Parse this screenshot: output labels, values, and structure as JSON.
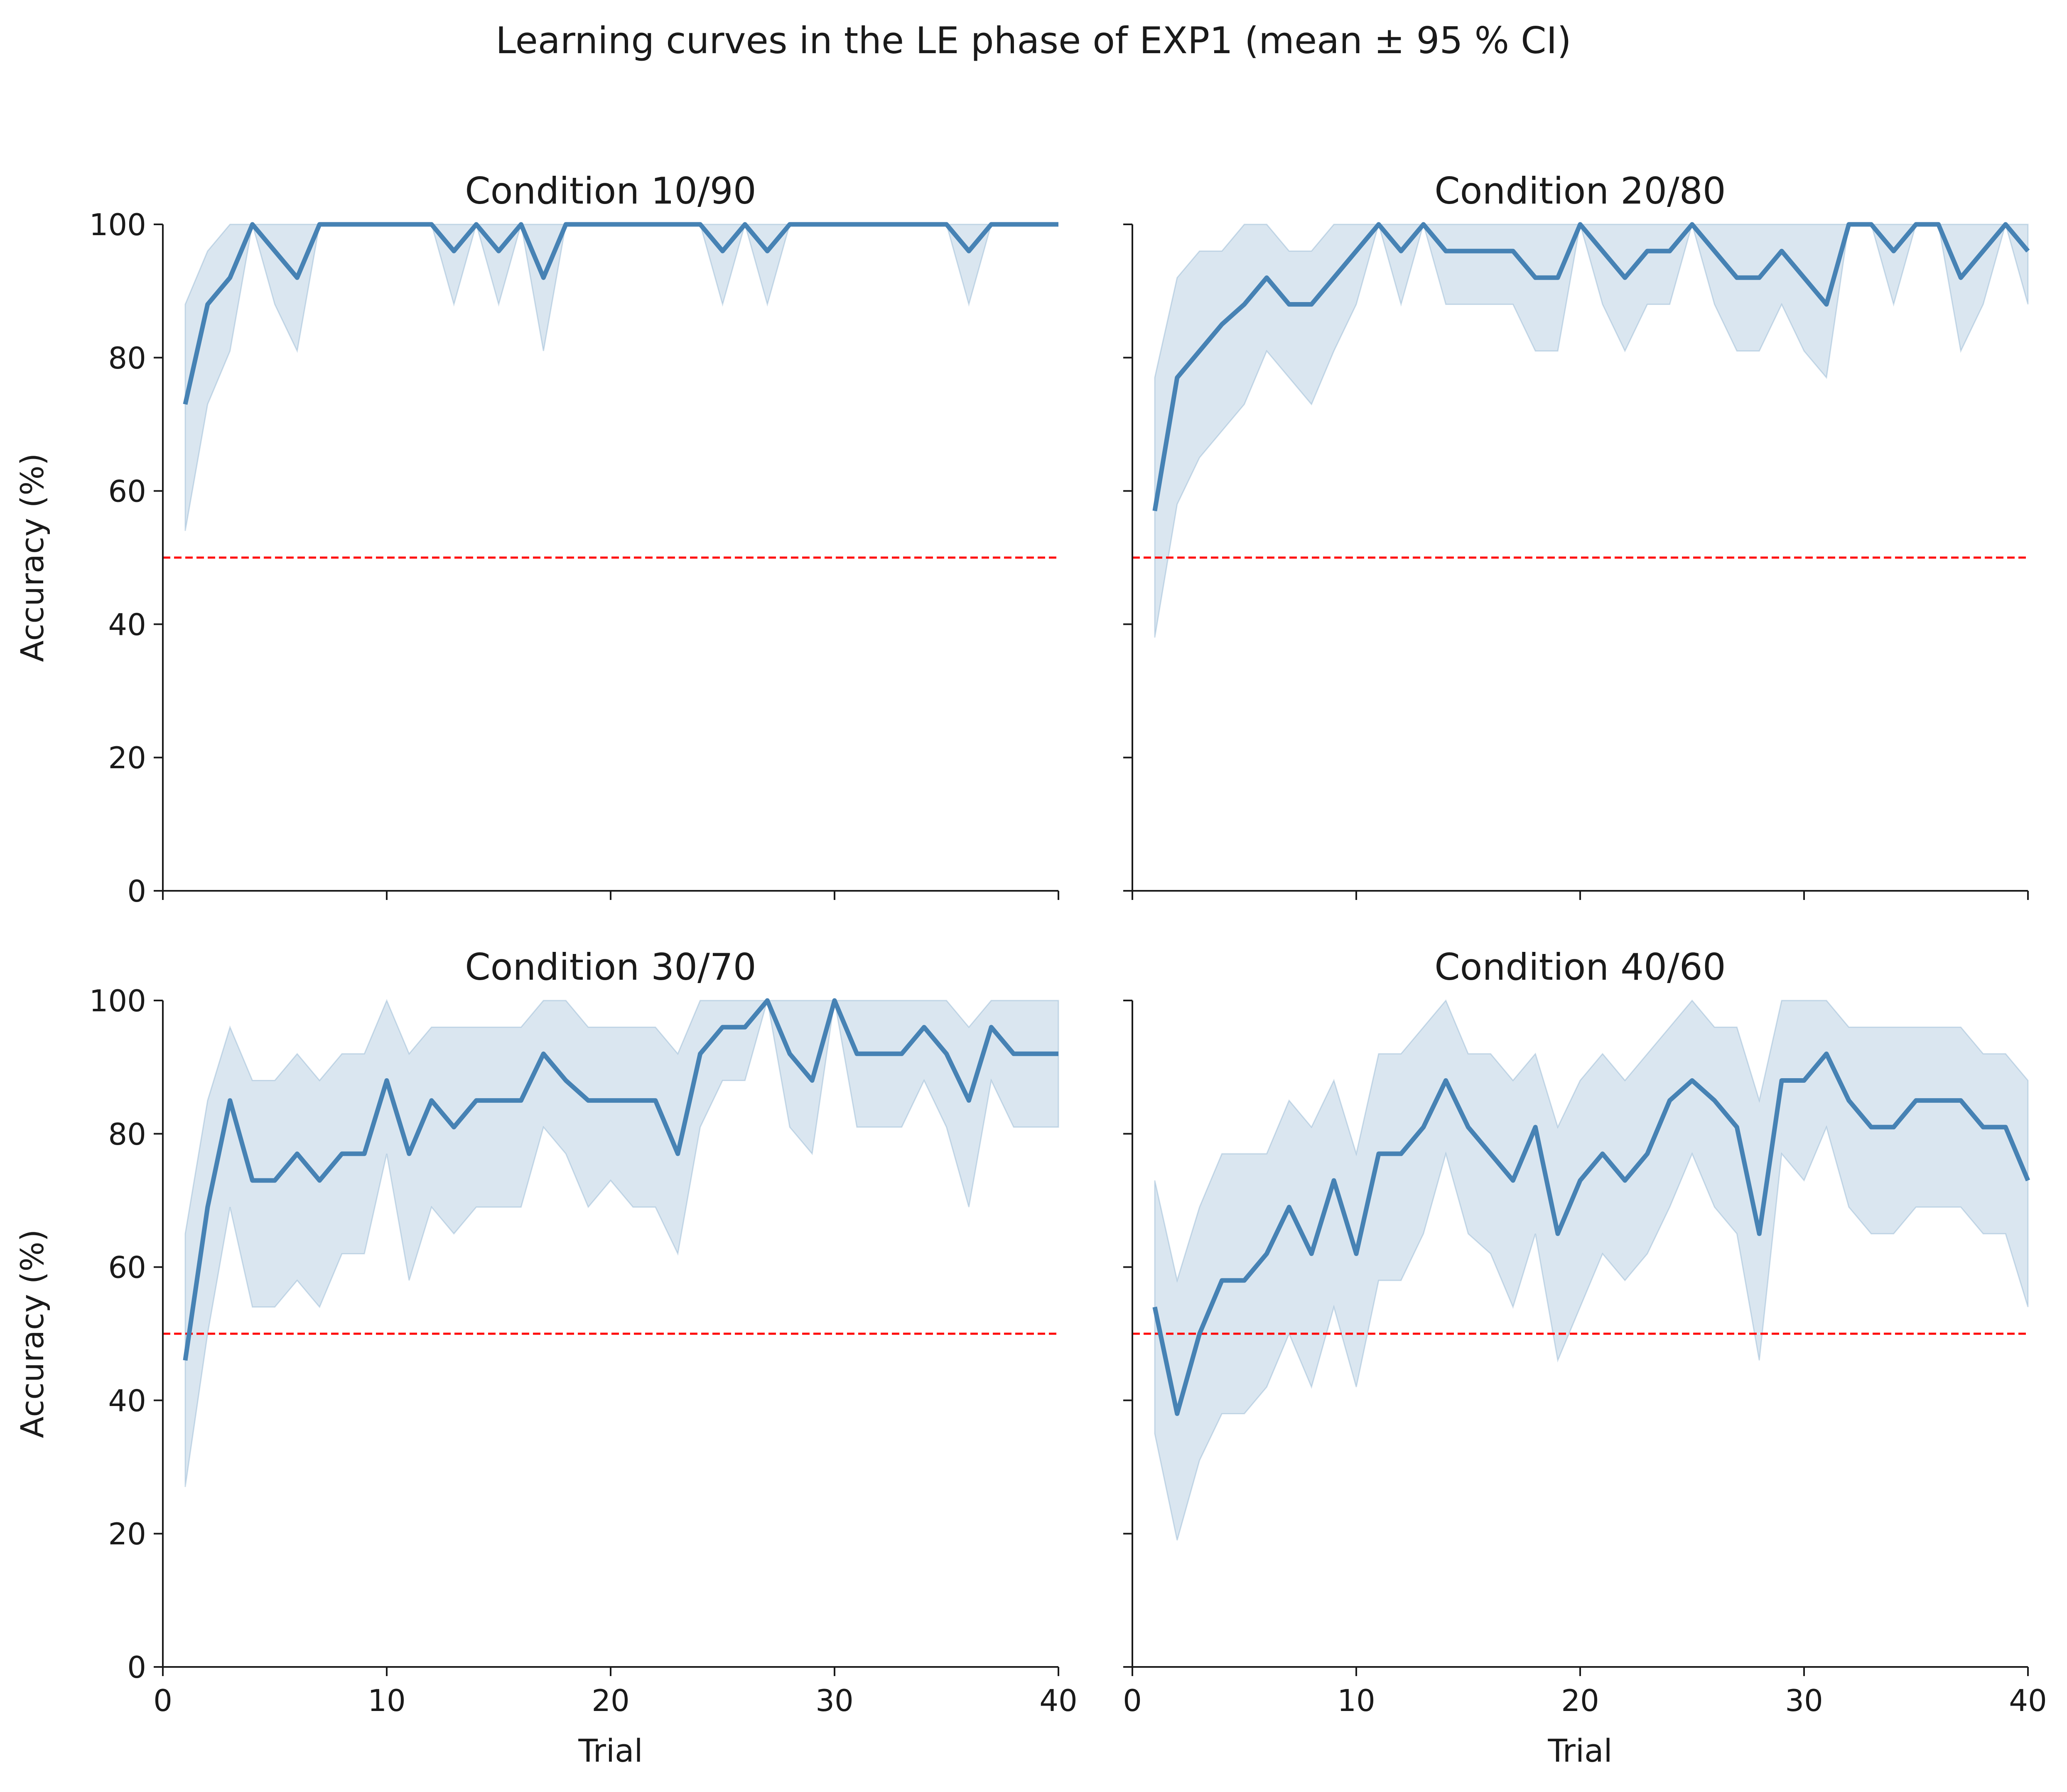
{
  "figure": {
    "title": "Learning curves in the LE phase of EXP1 (mean ± 95 % CI)",
    "colors": {
      "line": "#4682b4",
      "band": "#4682b4",
      "chance": "#ff0000",
      "axis": "#1a1a1a"
    }
  },
  "chart_data": [
    {
      "type": "line",
      "title": "Condition 10/90",
      "xlabel": "",
      "ylabel": "Accuracy (%)",
      "xlim": [
        0,
        40
      ],
      "ylim": [
        0,
        100
      ],
      "xticks": [
        "0",
        "10",
        "20",
        "30",
        "40"
      ],
      "yticks": [
        "0",
        "20",
        "40",
        "60",
        "80",
        "100"
      ],
      "show_x_ticklabels": false,
      "show_y_ticklabels": true,
      "chance_level": 50,
      "x": [
        1,
        2,
        3,
        4,
        5,
        6,
        7,
        8,
        9,
        10,
        11,
        12,
        13,
        14,
        15,
        16,
        17,
        18,
        19,
        20,
        21,
        22,
        23,
        24,
        25,
        26,
        27,
        28,
        29,
        30,
        31,
        32,
        33,
        34,
        35,
        36,
        37,
        38,
        39,
        40
      ],
      "mean": [
        73,
        88,
        92,
        100,
        96,
        92,
        100,
        100,
        100,
        100,
        100,
        100,
        96,
        100,
        96,
        100,
        92,
        100,
        100,
        100,
        100,
        100,
        100,
        100,
        96,
        100,
        96,
        100,
        100,
        100,
        100,
        100,
        100,
        100,
        100,
        96,
        100,
        100,
        100,
        100
      ],
      "lower": [
        54,
        73,
        81,
        100,
        88,
        81,
        100,
        100,
        100,
        100,
        100,
        100,
        88,
        100,
        88,
        100,
        81,
        100,
        100,
        100,
        100,
        100,
        100,
        100,
        88,
        100,
        88,
        100,
        100,
        100,
        100,
        100,
        100,
        100,
        100,
        88,
        100,
        100,
        100,
        100
      ],
      "upper": [
        88,
        96,
        100,
        100,
        100,
        100,
        100,
        100,
        100,
        100,
        100,
        100,
        100,
        100,
        100,
        100,
        100,
        100,
        100,
        100,
        100,
        100,
        100,
        100,
        100,
        100,
        100,
        100,
        100,
        100,
        100,
        100,
        100,
        100,
        100,
        100,
        100,
        100,
        100,
        100
      ]
    },
    {
      "type": "line",
      "title": "Condition 20/80",
      "xlabel": "",
      "ylabel": "",
      "xlim": [
        0,
        40
      ],
      "ylim": [
        0,
        100
      ],
      "xticks": [
        "0",
        "10",
        "20",
        "30",
        "40"
      ],
      "yticks": [
        "0",
        "20",
        "40",
        "60",
        "80",
        "100"
      ],
      "show_x_ticklabels": false,
      "show_y_ticklabels": false,
      "chance_level": 50,
      "x": [
        1,
        2,
        3,
        4,
        5,
        6,
        7,
        8,
        9,
        10,
        11,
        12,
        13,
        14,
        15,
        16,
        17,
        18,
        19,
        20,
        21,
        22,
        23,
        24,
        25,
        26,
        27,
        28,
        29,
        30,
        31,
        32,
        33,
        34,
        35,
        36,
        37,
        38,
        39,
        40
      ],
      "mean": [
        57,
        77,
        81,
        85,
        88,
        92,
        88,
        88,
        92,
        96,
        100,
        96,
        100,
        96,
        96,
        96,
        96,
        92,
        92,
        100,
        96,
        92,
        96,
        96,
        100,
        96,
        92,
        92,
        96,
        92,
        88,
        100,
        100,
        96,
        100,
        100,
        92,
        96,
        100,
        96
      ],
      "lower": [
        38,
        58,
        65,
        69,
        73,
        81,
        77,
        73,
        81,
        88,
        100,
        88,
        100,
        88,
        88,
        88,
        88,
        81,
        81,
        100,
        88,
        81,
        88,
        88,
        100,
        88,
        81,
        81,
        88,
        81,
        77,
        100,
        100,
        88,
        100,
        100,
        81,
        88,
        100,
        88
      ],
      "upper": [
        77,
        92,
        96,
        96,
        100,
        100,
        96,
        96,
        100,
        100,
        100,
        100,
        100,
        100,
        100,
        100,
        100,
        100,
        100,
        100,
        100,
        100,
        100,
        100,
        100,
        100,
        100,
        100,
        100,
        100,
        100,
        100,
        100,
        100,
        100,
        100,
        100,
        100,
        100,
        100
      ]
    },
    {
      "type": "line",
      "title": "Condition 30/70",
      "xlabel": "Trial",
      "ylabel": "Accuracy (%)",
      "xlim": [
        0,
        40
      ],
      "ylim": [
        0,
        100
      ],
      "xticks": [
        "0",
        "10",
        "20",
        "30",
        "40"
      ],
      "yticks": [
        "0",
        "20",
        "40",
        "60",
        "80",
        "100"
      ],
      "show_x_ticklabels": true,
      "show_y_ticklabels": true,
      "chance_level": 50,
      "x": [
        1,
        2,
        3,
        4,
        5,
        6,
        7,
        8,
        9,
        10,
        11,
        12,
        13,
        14,
        15,
        16,
        17,
        18,
        19,
        20,
        21,
        22,
        23,
        24,
        25,
        26,
        27,
        28,
        29,
        30,
        31,
        32,
        33,
        34,
        35,
        36,
        37,
        38,
        39,
        40
      ],
      "mean": [
        46,
        69,
        85,
        73,
        73,
        77,
        73,
        77,
        77,
        88,
        77,
        85,
        81,
        85,
        85,
        85,
        92,
        88,
        85,
        85,
        85,
        85,
        77,
        92,
        96,
        96,
        100,
        92,
        88,
        100,
        92,
        92,
        92,
        96,
        92,
        85,
        96,
        92,
        92,
        92
      ],
      "lower": [
        27,
        50,
        69,
        54,
        54,
        58,
        54,
        62,
        62,
        77,
        58,
        69,
        65,
        69,
        69,
        69,
        81,
        77,
        69,
        73,
        69,
        69,
        62,
        81,
        88,
        88,
        100,
        81,
        77,
        100,
        81,
        81,
        81,
        88,
        81,
        69,
        88,
        81,
        81,
        81
      ],
      "upper": [
        65,
        85,
        96,
        88,
        88,
        92,
        88,
        92,
        92,
        100,
        92,
        96,
        96,
        96,
        96,
        96,
        100,
        100,
        96,
        96,
        96,
        96,
        92,
        100,
        100,
        100,
        100,
        100,
        100,
        100,
        100,
        100,
        100,
        100,
        100,
        96,
        100,
        100,
        100,
        100
      ]
    },
    {
      "type": "line",
      "title": "Condition 40/60",
      "xlabel": "Trial",
      "ylabel": "",
      "xlim": [
        0,
        40
      ],
      "ylim": [
        0,
        100
      ],
      "xticks": [
        "0",
        "10",
        "20",
        "30",
        "40"
      ],
      "yticks": [
        "0",
        "20",
        "40",
        "60",
        "80",
        "100"
      ],
      "show_x_ticklabels": true,
      "show_y_ticklabels": false,
      "chance_level": 50,
      "x": [
        1,
        2,
        3,
        4,
        5,
        6,
        7,
        8,
        9,
        10,
        11,
        12,
        13,
        14,
        15,
        16,
        17,
        18,
        19,
        20,
        21,
        22,
        23,
        24,
        25,
        26,
        27,
        28,
        29,
        30,
        31,
        32,
        33,
        34,
        35,
        36,
        37,
        38,
        39,
        40
      ],
      "mean": [
        54,
        38,
        50,
        58,
        58,
        62,
        69,
        62,
        73,
        62,
        77,
        77,
        81,
        88,
        81,
        77,
        73,
        81,
        65,
        73,
        77,
        73,
        77,
        85,
        88,
        85,
        81,
        65,
        88,
        88,
        92,
        85,
        81,
        81,
        85,
        85,
        85,
        81,
        81,
        73
      ],
      "lower": [
        35,
        19,
        31,
        38,
        38,
        42,
        50,
        42,
        54,
        42,
        58,
        58,
        65,
        77,
        65,
        62,
        54,
        65,
        46,
        54,
        62,
        58,
        62,
        69,
        77,
        69,
        65,
        46,
        77,
        73,
        81,
        69,
        65,
        65,
        69,
        69,
        69,
        65,
        65,
        54
      ],
      "upper": [
        73,
        58,
        69,
        77,
        77,
        77,
        85,
        81,
        88,
        77,
        92,
        92,
        96,
        100,
        92,
        92,
        88,
        92,
        81,
        88,
        92,
        88,
        92,
        96,
        100,
        96,
        96,
        85,
        100,
        100,
        100,
        96,
        96,
        96,
        96,
        96,
        96,
        92,
        92,
        88
      ]
    }
  ]
}
